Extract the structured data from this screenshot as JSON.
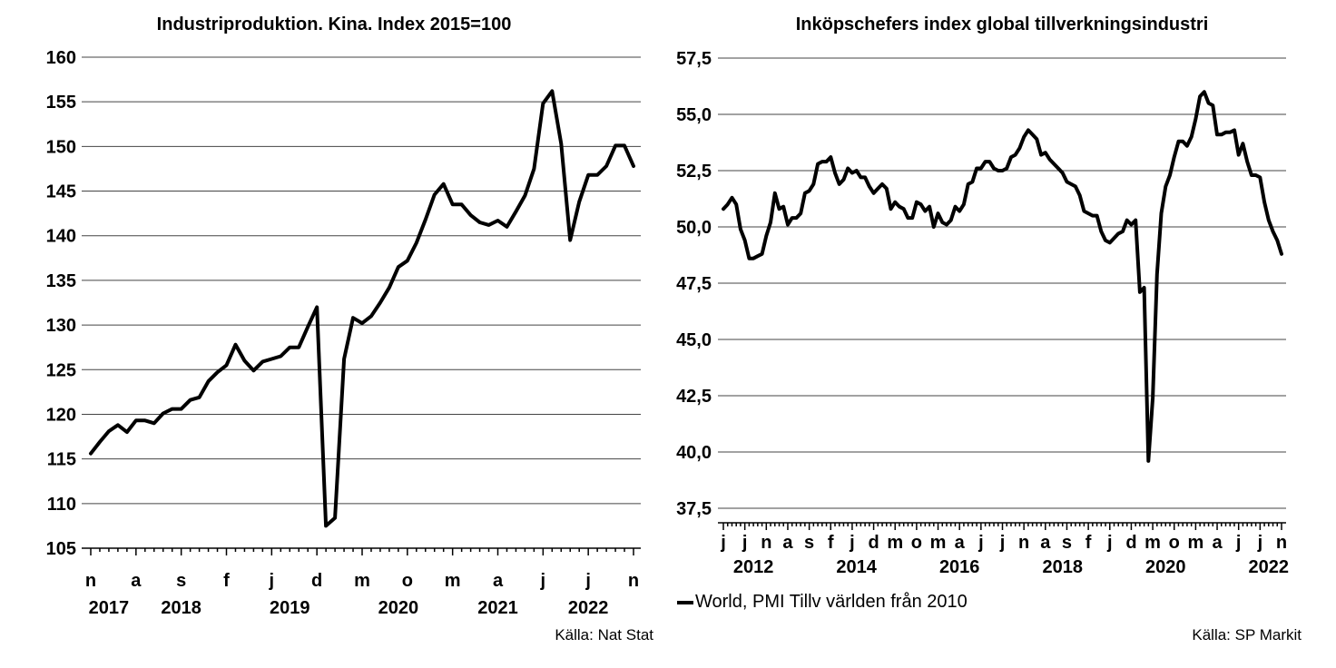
{
  "chart_data": [
    {
      "type": "line",
      "title": "Industriproduktion. Kina. Index 2015=100",
      "source": "Källa: Nat Stat",
      "ylim": [
        105,
        160
      ],
      "ytick_labels": [
        "105",
        "110",
        "115",
        "120",
        "125",
        "130",
        "135",
        "140",
        "145",
        "150",
        "155",
        "160"
      ],
      "yticks": [
        105,
        110,
        115,
        120,
        125,
        130,
        135,
        140,
        145,
        150,
        155,
        160
      ],
      "month_labels": [
        "n",
        "a",
        "s",
        "f",
        "j",
        "d",
        "m",
        "o",
        "m",
        "a",
        "j",
        "j",
        "n"
      ],
      "month_label_index": [
        0,
        5,
        10,
        15,
        20,
        25,
        30,
        35,
        40,
        45,
        50,
        55,
        60
      ],
      "year_labels": [
        "2017",
        "2018",
        "2019",
        "2020",
        "2021",
        "2022"
      ],
      "year_label_index": [
        2,
        10,
        22,
        34,
        45,
        55
      ],
      "x_start": "2017-11",
      "x_end": "2022-11",
      "grid": true,
      "series": [
        {
          "values": [
            115.6,
            116.9,
            118.1,
            118.8,
            118.0,
            119.3,
            119.3,
            119.0,
            120.1,
            120.6,
            120.6,
            121.6,
            121.9,
            123.7,
            124.7,
            125.5,
            127.8,
            126.0,
            124.9,
            125.9,
            126.2,
            126.5,
            127.5,
            127.5,
            129.8,
            132.0,
            107.5,
            108.4,
            126.2,
            130.8,
            130.2,
            131.0,
            132.5,
            134.2,
            136.5,
            137.2,
            139.2,
            141.8,
            144.6,
            145.8,
            143.5,
            143.5,
            142.3,
            141.5,
            141.2,
            141.7,
            141.0,
            142.7,
            144.5,
            147.5,
            154.8,
            156.2,
            150.3,
            139.5,
            143.8,
            146.8,
            146.8,
            147.8,
            150.1,
            150.1,
            147.8
          ]
        }
      ]
    },
    {
      "type": "line",
      "title": "Inköpschefers index global tillverkningsindustri",
      "source": "Källa: SP Markit",
      "ylim": [
        37.5,
        57.5
      ],
      "ytick_labels": [
        "37,5",
        "40,0",
        "42,5",
        "45,0",
        "47,5",
        "50,0",
        "52,5",
        "55,0",
        "57,5"
      ],
      "yticks": [
        37.5,
        40.0,
        42.5,
        45.0,
        47.5,
        50.0,
        52.5,
        55.0,
        57.5
      ],
      "month_labels": [
        "j",
        "j",
        "n",
        "a",
        "s",
        "f",
        "j",
        "d",
        "m",
        "o",
        "m",
        "a",
        "j",
        "j",
        "n",
        "a",
        "s",
        "f",
        "j",
        "d",
        "m",
        "o",
        "m",
        "a",
        "j",
        "j",
        "n"
      ],
      "month_label_index": [
        0,
        5,
        10,
        15,
        20,
        25,
        30,
        35,
        40,
        45,
        50,
        55,
        60,
        65,
        70,
        75,
        80,
        85,
        90,
        95,
        100,
        105,
        110,
        115,
        120,
        125,
        130
      ],
      "year_labels": [
        "2012",
        "2014",
        "2016",
        "2018",
        "2020",
        "2022"
      ],
      "year_label_index": [
        7,
        31,
        55,
        79,
        103,
        127
      ],
      "x_start": "2011-07",
      "x_end": "2022-05",
      "grid": true,
      "series": [
        {
          "name": "World, PMI Tillv världen från 2010",
          "values": [
            50.8,
            51.0,
            51.3,
            51.0,
            49.9,
            49.4,
            48.6,
            48.6,
            48.7,
            48.8,
            49.6,
            50.2,
            51.5,
            50.8,
            50.9,
            50.1,
            50.4,
            50.4,
            50.6,
            51.5,
            51.6,
            51.9,
            52.8,
            52.9,
            52.9,
            53.1,
            52.4,
            51.9,
            52.1,
            52.6,
            52.4,
            52.5,
            52.2,
            52.2,
            51.8,
            51.5,
            51.7,
            51.9,
            51.7,
            50.8,
            51.1,
            50.9,
            50.8,
            50.4,
            50.4,
            51.1,
            51.0,
            50.7,
            50.9,
            50.0,
            50.6,
            50.2,
            50.1,
            50.3,
            50.9,
            50.7,
            51.0,
            51.9,
            52.0,
            52.6,
            52.6,
            52.9,
            52.9,
            52.6,
            52.5,
            52.5,
            52.6,
            53.1,
            53.2,
            53.5,
            54.0,
            54.3,
            54.1,
            53.9,
            53.2,
            53.3,
            53.0,
            52.8,
            52.6,
            52.4,
            52.0,
            51.9,
            51.8,
            51.4,
            50.7,
            50.6,
            50.5,
            50.5,
            49.8,
            49.4,
            49.3,
            49.5,
            49.7,
            49.8,
            50.3,
            50.1,
            50.3,
            47.1,
            47.3,
            39.6,
            42.4,
            47.9,
            50.6,
            51.8,
            52.3,
            53.1,
            53.8,
            53.8,
            53.6,
            54.0,
            54.8,
            55.8,
            56.0,
            55.5,
            55.4,
            54.1,
            54.1,
            54.2,
            54.2,
            54.3,
            53.2,
            53.7,
            52.9,
            52.3,
            52.3,
            52.2,
            51.1,
            50.3,
            49.8,
            49.4,
            48.8
          ]
        }
      ]
    }
  ]
}
